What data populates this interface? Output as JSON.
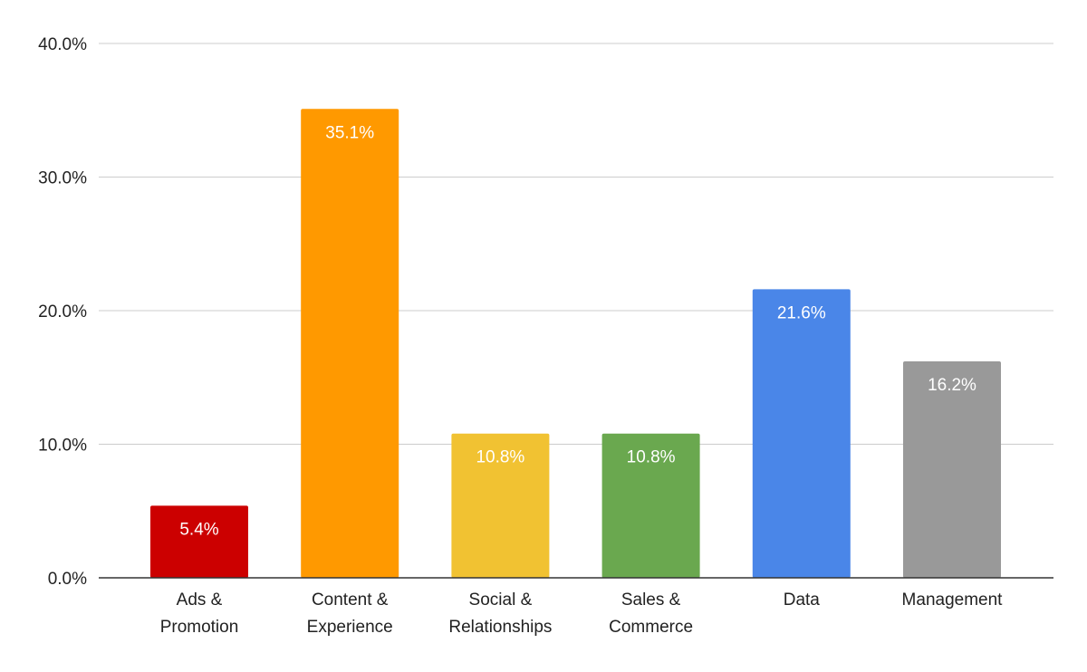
{
  "chart_data": {
    "type": "bar",
    "title": "",
    "xlabel": "",
    "ylabel": "",
    "categories": [
      [
        "Ads &",
        "Promotion"
      ],
      [
        "Content &",
        "Experience"
      ],
      [
        "Social &",
        "Relationships"
      ],
      [
        "Sales &",
        "Commerce"
      ],
      [
        "Data"
      ],
      [
        "Management"
      ]
    ],
    "values": [
      5.4,
      35.1,
      10.8,
      10.8,
      21.6,
      16.2
    ],
    "value_labels": [
      "5.4%",
      "35.1%",
      "10.8%",
      "10.8%",
      "21.6%",
      "16.2%"
    ],
    "colors": [
      "#cc0000",
      "#ff9900",
      "#f1c232",
      "#6aa84f",
      "#4a86e8",
      "#999999"
    ],
    "ylim": [
      0,
      40
    ],
    "yticks": [
      0,
      10,
      20,
      30,
      40
    ],
    "ytick_labels": [
      "0.0%",
      "10.0%",
      "20.0%",
      "30.0%",
      "40.0%"
    ],
    "grid": true,
    "legend": "none"
  }
}
